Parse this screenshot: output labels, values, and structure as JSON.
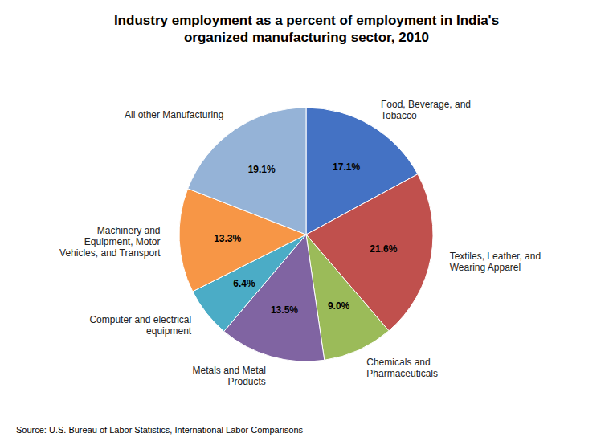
{
  "chart_data": {
    "type": "pie",
    "title": "Industry employment as a percent of employment in India's\norganized manufacturing sector, 2010",
    "annotations": [
      "Source: U.S. Bureau of Labor Statistics, International Labor Comparisons"
    ],
    "categories": [
      "Food, Beverage, and\nTobacco",
      "Textiles, Leather, and\nWearing Apparel",
      "Chemicals and\nPharmaceuticals",
      "Metals and Metal\nProducts",
      "Computer and electrical\nequipment",
      "Machinery and\nEquipment, Motor\nVehicles, and Transport",
      "All other Manufacturing"
    ],
    "values": [
      17.1,
      21.6,
      9.0,
      13.5,
      6.4,
      13.3,
      19.1
    ],
    "value_labels": [
      "17.1%",
      "21.6%",
      "9.0%",
      "13.5%",
      "6.4%",
      "13.3%",
      "19.1%"
    ],
    "colors": [
      "#4472C4",
      "#C0504D",
      "#9BBB59",
      "#8064A2",
      "#4BACC6",
      "#F79646",
      "#95B3D7"
    ],
    "data_labels": true
  }
}
